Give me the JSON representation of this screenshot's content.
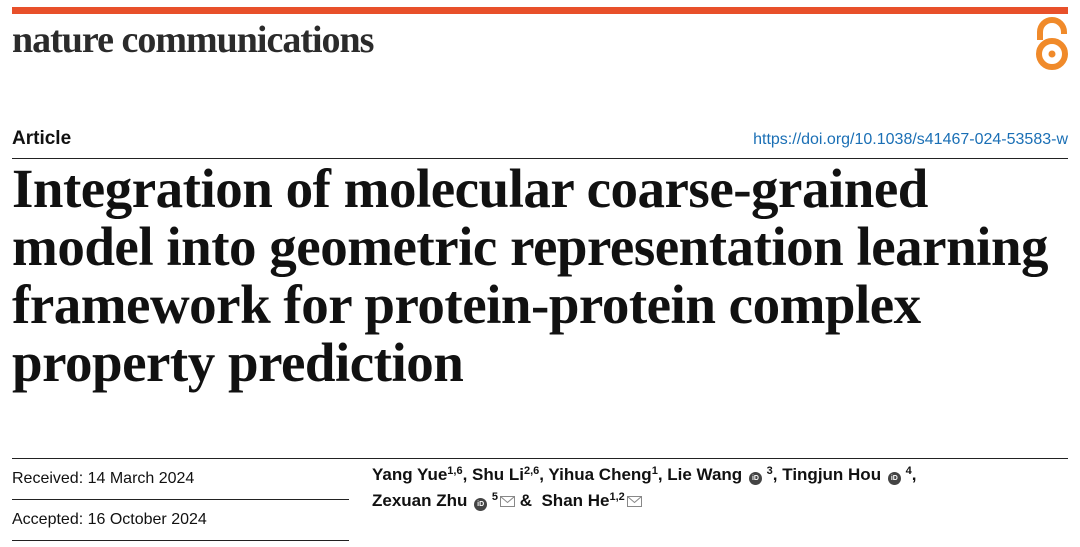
{
  "header": {
    "journal": "nature communications",
    "open_access_icon": "open-access-lock-icon",
    "accent_color": "#e8502a"
  },
  "meta": {
    "article_type": "Article",
    "doi": "https://doi.org/10.1038/s41467-024-53583-w",
    "link_color": "#1a6fb5"
  },
  "title": "Integration of molecular coarse-grained model into geometric representation learning framework for protein-protein complex property prediction",
  "dates": {
    "received": "Received: 14 March 2024",
    "accepted": "Accepted: 16 October 2024"
  },
  "authors": [
    {
      "name": "Yang Yue",
      "aff": "1,6",
      "orcid": false,
      "email": false,
      "sep": ", "
    },
    {
      "name": "Shu Li",
      "aff": "2,6",
      "orcid": false,
      "email": false,
      "sep": ", "
    },
    {
      "name": "Yihua Cheng",
      "aff": "1",
      "orcid": false,
      "email": false,
      "sep": ", "
    },
    {
      "name": "Lie Wang",
      "aff": "3",
      "orcid": true,
      "email": false,
      "sep": ", "
    },
    {
      "name": "Tingjun Hou",
      "aff": "4",
      "orcid": true,
      "email": false,
      "sep": ","
    },
    {
      "name": "Zexuan Zhu",
      "aff": "5",
      "orcid": true,
      "email": true,
      "sep": " & "
    },
    {
      "name": "Shan He",
      "aff": "1,2",
      "orcid": false,
      "email": true,
      "sep": ""
    }
  ]
}
